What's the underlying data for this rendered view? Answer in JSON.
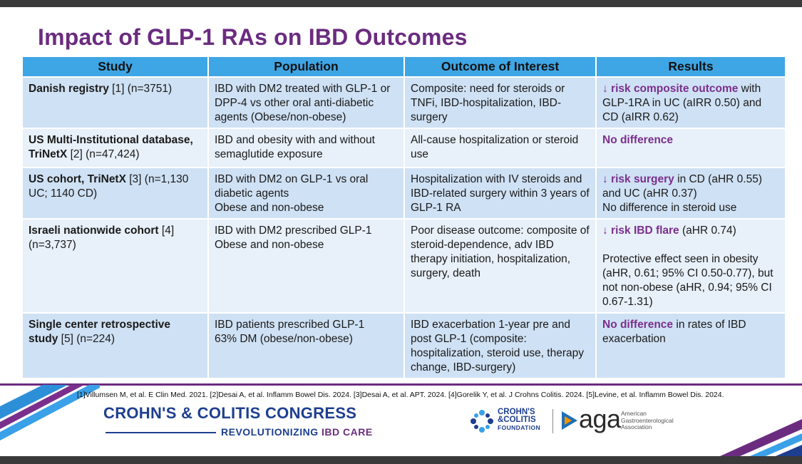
{
  "title": "Impact of GLP-1 RAs on IBD Outcomes",
  "table": {
    "headers": [
      "Study",
      "Population",
      "Outcome of Interest",
      "Results"
    ],
    "rows": [
      {
        "study_bold": "Danish registry",
        "study_rest": " [1] (n=3751)",
        "population": [
          "IBD with DM2 treated with GLP-1 or DPP-4 vs other oral anti-diabetic agents (Obese/non-obese)"
        ],
        "outcome": "Composite: need for steroids or TNFi, IBD-hospitalization, IBD-surgery",
        "result_highlight": "↓ risk composite outcome",
        "result_rest": " with GLP-1RA in UC (aIRR 0.50) and CD (aIRR 0.62)"
      },
      {
        "study_bold": "US Multi-Institutional database, TriNetX",
        "study_rest": " [2] (n=47,424)",
        "population": [
          "IBD and obesity with and without semaglutide exposure"
        ],
        "outcome": "All-cause hospitalization or steroid use",
        "result_highlight": "No difference",
        "result_rest": ""
      },
      {
        "study_bold": "US cohort, TriNetX",
        "study_rest": " [3] (n=1,130 UC; 1140 CD)",
        "population": [
          "IBD with DM2 on GLP-1 vs oral diabetic agents",
          "Obese and non-obese"
        ],
        "outcome": "Hospitalization with IV steroids and IBD-related surgery within 3 years of GLP-1 RA",
        "result_highlight": "↓ risk surgery",
        "result_rest": " in CD (aHR 0.55) and UC (aHR 0.37)",
        "result_extra": "No difference in steroid use"
      },
      {
        "study_bold": "Israeli nationwide cohort",
        "study_rest": " [4] (n=3,737)",
        "population": [
          "IBD with DM2 prescribed GLP-1",
          "Obese and non-obese"
        ],
        "outcome": "Poor disease outcome: composite of steroid-dependence, adv IBD therapy initiation, hospitalization, surgery, death",
        "result_highlight": "↓ risk IBD flare",
        "result_rest": " (aHR 0.74)",
        "result_extra": "Protective effect seen in obesity (aHR, 0.61; 95% CI 0.50-0.77), but not non-obese (aHR, 0.94; 95% CI 0.67-1.31)"
      },
      {
        "study_bold": "Single center retrospective study",
        "study_rest": " [5] (n=224)",
        "population": [
          "IBD patients prescribed GLP-1",
          "63% DM (obese/non-obese)"
        ],
        "outcome": "IBD exacerbation 1-year pre and post GLP-1 (composite: hospitalization, steroid use, therapy change, IBD-surgery)",
        "result_highlight": "No difference",
        "result_rest": " in rates of IBD exacerbation"
      }
    ]
  },
  "references": "[1]Villumsen M, et al. E Clin Med. 2021. [2]Desai A, et al. Inflamm Bowel Dis. 2024. [3]Desai A, et al. APT. 2024. [4]Gorelik Y, et al. J Crohns Colitis. 2024. [5]Levine, et al. Inflamm Bowel Dis. 2024.",
  "footer": {
    "congress": "CROHN'S & COLITIS CONGRESS",
    "tagline_main": "REVOLUTIONIZING ",
    "tagline_accent": "IBD CARE",
    "ccf_line1": "CROHN'S",
    "ccf_line2": "&COLITIS",
    "ccf_line3": "FOUNDATION",
    "aga_word": "aga",
    "aga_sub1": "American",
    "aga_sub2": "Gastroenterological",
    "aga_sub3": "Association"
  },
  "colors": {
    "title": "#6b2c80",
    "header_bg": "#3fa6e6",
    "row_odd": "#cfe1f4",
    "row_even": "#e8f0f9",
    "highlight": "#7a2f8c",
    "footer_blue": "#1e3f8f"
  },
  "icons": {
    "left_stripes": "diagonal-stripes-decoration",
    "right_stripes": "diagonal-stripes-decoration",
    "ccf_logo": "crohns-colitis-foundation-logo",
    "aga_logo": "aga-triangle-logo"
  }
}
